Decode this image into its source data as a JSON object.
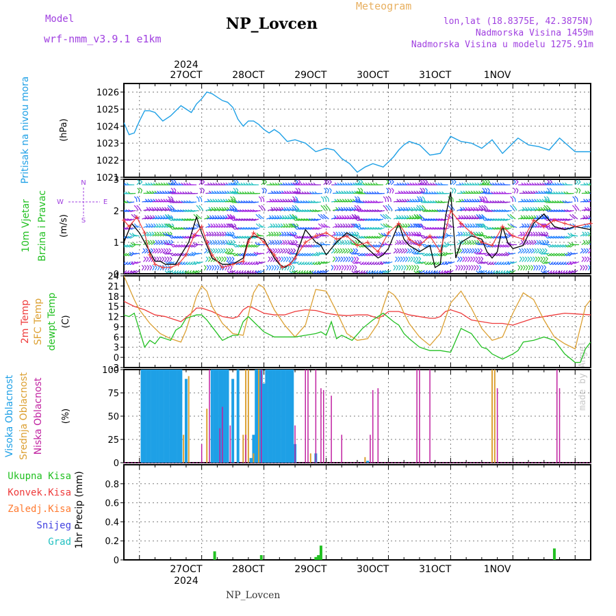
{
  "header": {
    "model_label": "Model",
    "model_name": "wrf-nmm_v3.9.1  e1km",
    "station": "NP_Lovcen",
    "product": "Meteogram",
    "lonlat": "lon,lat (18.8375E, 42.3875N)",
    "altitude": "Nadmorska Visina 1459m",
    "model_altitude": "Nadmorska Visina u modelu 1275.91m",
    "watermark": "made by Angel",
    "footer_station": "NP_Lovcen"
  },
  "time_axis": {
    "year": "2024",
    "day_labels": [
      "27OCT",
      "28OCT",
      "29OCT",
      "30OCT",
      "31OCT",
      "1NOV"
    ],
    "start_hour": -30,
    "end_hour": 150
  },
  "colors": {
    "pressure": "#1ea0e6",
    "temp_2m": "#ee3a3a",
    "sfc_temp": "#dca032",
    "dewpoint": "#22c022",
    "high_cloud": "#1ea0e6",
    "mid_cloud": "#dca032",
    "low_cloud": "#c020a0",
    "wind_speed": "#000000",
    "wind_gust": "#ee3a3a",
    "precip_total": "#22c022"
  },
  "chart_data": [
    {
      "type": "line",
      "panel": "pressure",
      "ylabel": "Pritisak na nivou mora",
      "unit": "(hPa)",
      "ylim": [
        1021,
        1026.5
      ],
      "yticks": [
        "1021",
        "1022",
        "1023",
        "1024",
        "1025",
        "1026"
      ],
      "grid": true,
      "series": [
        {
          "name": "Pritisak na nivou mora",
          "x": [
            -30,
            -28,
            -26,
            -24,
            -22,
            -20,
            -18,
            -15,
            -12,
            -10,
            -8,
            -6,
            -4,
            -2,
            0,
            2,
            4,
            6,
            8,
            10,
            12,
            14,
            16,
            18,
            20,
            22,
            24,
            26,
            28,
            30,
            33,
            36,
            40,
            44,
            48,
            51,
            54,
            57,
            60,
            63,
            66,
            70,
            72,
            74,
            76,
            78,
            80,
            84,
            88,
            92,
            96,
            100,
            104,
            108,
            112,
            116,
            118,
            120,
            122,
            126,
            130,
            134,
            138,
            144,
            150
          ],
          "y": [
            1024.2,
            1023.5,
            1023.6,
            1024.3,
            1024.9,
            1024.9,
            1024.8,
            1024.3,
            1024.6,
            1024.9,
            1025.2,
            1025.0,
            1024.8,
            1025.3,
            1025.6,
            1026.0,
            1025.9,
            1025.7,
            1025.5,
            1025.4,
            1025.1,
            1024.4,
            1024.0,
            1024.3,
            1024.3,
            1024.1,
            1023.8,
            1023.6,
            1023.8,
            1023.6,
            1023.1,
            1023.2,
            1023.0,
            1022.5,
            1022.7,
            1022.6,
            1022.1,
            1021.8,
            1021.3,
            1021.6,
            1021.8,
            1021.6,
            1021.9,
            1022.2,
            1022.6,
            1022.9,
            1023.1,
            1022.9,
            1022.3,
            1022.4,
            1023.4,
            1023.1,
            1023.0,
            1022.7,
            1023.2,
            1022.4,
            1022.7,
            1023.0,
            1023.3,
            1022.9,
            1022.8,
            1022.6,
            1023.3,
            1022.5,
            1022.5
          ]
        }
      ]
    },
    {
      "type": "line",
      "panel": "wind",
      "ylabel": "10m Vjetar Brzina i Pravac",
      "unit": "(m/s)",
      "compass": [
        "N",
        "W",
        "E",
        "S"
      ],
      "ylim": [
        0,
        3
      ],
      "yticks": [
        "0",
        "1",
        "2",
        "3"
      ],
      "grid": true,
      "series": [
        {
          "name": "brzina",
          "x": [
            -30,
            -27,
            -24,
            -22,
            -20,
            -18,
            -16,
            -14,
            -12,
            -10,
            -8,
            -5,
            -2,
            0,
            2,
            4,
            8,
            12,
            16,
            18,
            20,
            24,
            28,
            30,
            32,
            34,
            36,
            40,
            44,
            46,
            48,
            52,
            56,
            60,
            64,
            68,
            70,
            72,
            74,
            76,
            78,
            80,
            84,
            88,
            90,
            92,
            94,
            96,
            98,
            100,
            104,
            108,
            110,
            112,
            114,
            116,
            118,
            120,
            124,
            128,
            132,
            136,
            140,
            144,
            150
          ],
          "y": [
            1.0,
            1.6,
            1.3,
            1.0,
            0.7,
            0.4,
            0.4,
            0.3,
            0.3,
            0.3,
            0.6,
            1.0,
            1.8,
            1.3,
            0.9,
            0.5,
            0.3,
            0.3,
            0.5,
            1.1,
            1.2,
            1.1,
            0.5,
            0.3,
            0.2,
            0.3,
            0.5,
            1.4,
            1.0,
            0.9,
            0.6,
            1.0,
            1.3,
            1.1,
            0.8,
            0.5,
            0.6,
            0.8,
            1.2,
            1.6,
            1.1,
            0.9,
            0.7,
            0.9,
            0.2,
            0.3,
            1.8,
            2.6,
            0.5,
            1.0,
            1.2,
            1.1,
            0.7,
            0.5,
            0.7,
            1.5,
            1.0,
            0.8,
            0.9,
            1.6,
            1.9,
            1.5,
            1.4,
            1.5,
            1.4
          ]
        },
        {
          "name": "udar",
          "x": [
            -30,
            -28,
            -25,
            -22,
            -20,
            -18,
            -15,
            -12,
            -9,
            -6,
            -3,
            0,
            2,
            4,
            8,
            12,
            16,
            18,
            20,
            24,
            28,
            31,
            34,
            36,
            40,
            44,
            48,
            52,
            56,
            60,
            64,
            68,
            72,
            76,
            80,
            84,
            88,
            92,
            96,
            100,
            104,
            108,
            112,
            116,
            120,
            124,
            128,
            132,
            136,
            140,
            144,
            150
          ],
          "y": [
            1.7,
            1.5,
            1.8,
            1.3,
            0.6,
            0.3,
            0.2,
            0.2,
            0.3,
            0.6,
            1.2,
            1.5,
            1.0,
            0.6,
            0.2,
            0.3,
            0.4,
            1.0,
            1.3,
            1.0,
            0.6,
            0.2,
            0.3,
            0.5,
            1.0,
            1.2,
            1.3,
            1.1,
            1.2,
            0.9,
            1.0,
            0.7,
            1.3,
            1.6,
            1.1,
            0.9,
            1.2,
            0.7,
            2.0,
            1.6,
            1.3,
            1.0,
            0.9,
            1.5,
            1.2,
            1.1,
            1.7,
            1.5,
            1.7,
            1.6,
            1.5,
            1.6
          ]
        }
      ]
    },
    {
      "type": "line",
      "panel": "temperature",
      "ylabel": "2m Temp / SFC Temp / dewpt Temp",
      "unit": "(C)",
      "ylim": [
        -3,
        24
      ],
      "yticks": [
        "-3",
        "0",
        "3",
        "6",
        "9",
        "12",
        "15",
        "18",
        "21",
        "24"
      ],
      "grid": true,
      "series": [
        {
          "name": "2m Temp",
          "x": [
            -30,
            -26,
            -22,
            -18,
            -14,
            -12,
            -8,
            -4,
            -2,
            0,
            4,
            8,
            12,
            14,
            16,
            18,
            20,
            24,
            28,
            32,
            36,
            40,
            44,
            48,
            52,
            56,
            60,
            64,
            66,
            68,
            70,
            72,
            76,
            80,
            84,
            88,
            90,
            92,
            94,
            96,
            100,
            104,
            108,
            112,
            116,
            120,
            124,
            128,
            132,
            136,
            140,
            144,
            150
          ],
          "y": [
            16.5,
            15.0,
            14.0,
            12.5,
            12.0,
            11.5,
            10.5,
            13.0,
            14.5,
            14.5,
            13.5,
            12.0,
            11.5,
            12.0,
            14.0,
            15.0,
            14.5,
            13.0,
            12.5,
            12.5,
            13.5,
            14.0,
            13.8,
            13.0,
            12.5,
            12.3,
            12.5,
            12.5,
            12.0,
            11.5,
            12.3,
            13.5,
            13.5,
            12.5,
            12.0,
            11.5,
            11.5,
            12.0,
            13.5,
            14.0,
            13.0,
            11.0,
            10.5,
            10.0,
            10.0,
            9.5,
            10.5,
            11.5,
            12.0,
            12.5,
            13.0,
            12.8,
            12.5
          ]
        },
        {
          "name": "SFC Temp",
          "x": [
            -30,
            -28,
            -26,
            -24,
            -20,
            -16,
            -12,
            -8,
            -6,
            -4,
            -2,
            0,
            2,
            4,
            8,
            12,
            16,
            18,
            20,
            22,
            24,
            28,
            32,
            36,
            40,
            44,
            48,
            52,
            56,
            60,
            64,
            68,
            70,
            72,
            74,
            76,
            78,
            80,
            84,
            88,
            92,
            96,
            100,
            104,
            108,
            112,
            116,
            120,
            124,
            128,
            132,
            136,
            140,
            144,
            148,
            150
          ],
          "y": [
            24.0,
            20.5,
            17.0,
            14.0,
            10.0,
            7.0,
            5.5,
            4.5,
            8.0,
            13.0,
            18.0,
            21.0,
            19.5,
            15.0,
            10.0,
            7.0,
            6.5,
            12.5,
            19.0,
            21.5,
            20.5,
            14.0,
            9.5,
            6.0,
            9.5,
            20.0,
            19.5,
            13.5,
            7.0,
            5.0,
            5.5,
            10.0,
            15.0,
            19.5,
            18.5,
            16.5,
            13.0,
            10.0,
            6.0,
            3.5,
            7.0,
            16.0,
            19.5,
            14.5,
            8.5,
            5.0,
            6.0,
            13.0,
            19.0,
            17.0,
            11.0,
            6.0,
            4.0,
            2.5,
            15.0,
            17.0
          ]
        },
        {
          "name": "dewpt Temp",
          "x": [
            -30,
            -28,
            -26,
            -24,
            -22,
            -20,
            -18,
            -16,
            -14,
            -12,
            -10,
            -8,
            -6,
            -4,
            -2,
            0,
            2,
            4,
            8,
            12,
            14,
            16,
            18,
            20,
            22,
            24,
            28,
            32,
            36,
            40,
            44,
            46,
            48,
            50,
            52,
            54,
            58,
            62,
            66,
            70,
            74,
            76,
            78,
            80,
            84,
            88,
            92,
            96,
            100,
            104,
            108,
            110,
            112,
            116,
            120,
            122,
            124,
            128,
            132,
            136,
            140,
            144,
            146,
            148,
            150
          ],
          "y": [
            12.5,
            12.0,
            13.0,
            8.0,
            3.0,
            5.0,
            4.0,
            6.0,
            5.5,
            5.0,
            8.0,
            9.0,
            11.5,
            12.0,
            12.5,
            12.5,
            11.0,
            9.0,
            5.0,
            6.5,
            6.5,
            10.5,
            12.0,
            10.5,
            9.0,
            7.5,
            6.0,
            6.0,
            6.0,
            6.5,
            7.0,
            7.5,
            6.5,
            10.5,
            5.5,
            6.5,
            5.0,
            8.5,
            11.0,
            13.0,
            10.5,
            9.5,
            7.0,
            5.5,
            3.0,
            2.0,
            2.0,
            1.5,
            8.5,
            7.0,
            3.0,
            2.5,
            1.0,
            -0.5,
            1.0,
            2.0,
            4.5,
            5.0,
            6.0,
            5.0,
            1.0,
            -1.5,
            -1.5,
            2.5,
            4.5
          ]
        }
      ]
    },
    {
      "type": "bar",
      "panel": "cloud",
      "ylabel": "Visoka Oblacnost / Srednja Oblacnost / Niska Oblacnost",
      "unit": "(%)",
      "ylim": [
        0,
        100
      ],
      "yticks": [
        "0",
        "25",
        "50",
        "75",
        "100"
      ],
      "grid": true,
      "series": [
        {
          "name": "Visoka Oblacnost",
          "x": [
            -23,
            -22,
            -21,
            -20,
            -19,
            -18,
            -17,
            -16,
            -15,
            -14,
            -13,
            -12,
            -11,
            -10,
            -9,
            -8,
            -6,
            4,
            5,
            6,
            7,
            8,
            9,
            10,
            12,
            14,
            19,
            20,
            21,
            22,
            23,
            24,
            25,
            26,
            27,
            28,
            29,
            30,
            31,
            32,
            33,
            34,
            35,
            36,
            44,
            64
          ],
          "y": [
            100,
            100,
            100,
            100,
            100,
            100,
            100,
            100,
            100,
            100,
            100,
            100,
            100,
            100,
            100,
            100,
            90,
            100,
            100,
            100,
            100,
            100,
            100,
            100,
            90,
            100,
            5,
            30,
            100,
            100,
            100,
            85,
            100,
            100,
            100,
            100,
            100,
            100,
            100,
            100,
            100,
            100,
            100,
            20,
            10,
            2
          ]
        },
        {
          "name": "Srednja Oblacnost",
          "x": [
            -7,
            -5,
            2,
            16,
            17,
            18,
            20,
            22,
            42,
            63,
            112,
            113
          ],
          "y": [
            30,
            93,
            58,
            30,
            100,
            100,
            10,
            100,
            10,
            6,
            100,
            100
          ]
        },
        {
          "name": "Niska Oblacnost",
          "x": [
            0,
            3,
            7,
            8,
            11,
            17,
            23,
            36,
            40,
            41,
            44,
            46,
            47,
            50,
            54,
            65,
            66,
            68,
            83,
            84,
            88,
            114,
            137,
            138
          ],
          "y": [
            20,
            100,
            37,
            60,
            40,
            30,
            100,
            40,
            100,
            100,
            100,
            80,
            78,
            72,
            30,
            30,
            78,
            80,
            100,
            100,
            100,
            80,
            100,
            80
          ]
        }
      ]
    },
    {
      "type": "bar",
      "panel": "precipitation",
      "ylabel": "1hr Precip",
      "unit": "(mm)",
      "legend": [
        "Ukupna Kisa",
        "Konvek.Kisa",
        "Zaledj.Kisa",
        "Snijeg",
        "Grad"
      ],
      "ylim": [
        0,
        1.0
      ],
      "yticks": [
        "0",
        "0.2",
        "0.4",
        "0.6",
        "0.8"
      ],
      "grid": true,
      "series": [
        {
          "name": "Ukupna Kisa",
          "x": [
            5,
            23,
            44,
            45,
            46,
            136
          ],
          "y": [
            0.09,
            0.05,
            0.03,
            0.05,
            0.15,
            0.12
          ]
        }
      ]
    }
  ]
}
